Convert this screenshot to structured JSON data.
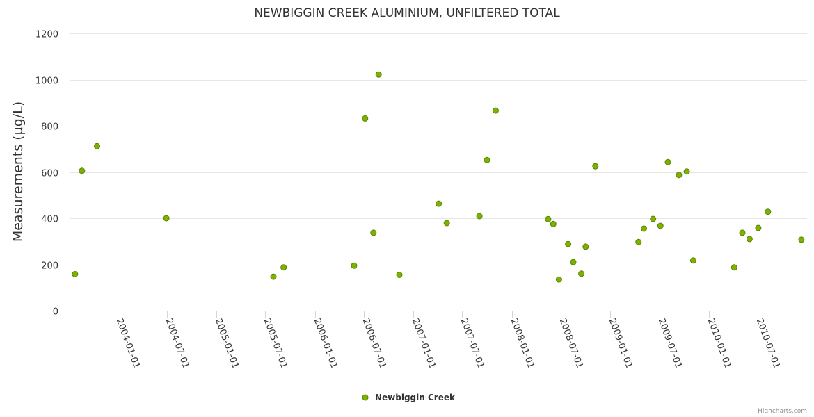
{
  "chart_data": {
    "type": "scatter",
    "title": "NEWBIGGIN CREEK ALUMINIUM, UNFILTERED TOTAL",
    "ylabel": "Measurements (µg/L)",
    "xlabel": "",
    "ylim": [
      0,
      1200
    ],
    "y_ticks": [
      "0",
      "200",
      "400",
      "600",
      "800",
      "1000",
      "1200"
    ],
    "x_ticks": [
      "2004-01-01",
      "2004-07-01",
      "2005-01-01",
      "2005-07-01",
      "2006-01-01",
      "2006-07-01",
      "2007-01-01",
      "2007-07-01",
      "2008-01-01",
      "2008-07-01",
      "2009-01-01",
      "2009-07-01",
      "2010-01-01",
      "2010-07-01"
    ],
    "xlim": [
      "2003-07-06",
      "2010-12-31"
    ],
    "grid": "horizontal",
    "legend_position": "bottom-center",
    "series": [
      {
        "name": "Newbiggin Creek",
        "color": "#7cb300",
        "points": [
          {
            "x": "2003-07-26",
            "y": 158
          },
          {
            "x": "2003-08-21",
            "y": 605
          },
          {
            "x": "2003-10-16",
            "y": 712
          },
          {
            "x": "2004-06-29",
            "y": 400
          },
          {
            "x": "2005-07-31",
            "y": 147
          },
          {
            "x": "2005-09-07",
            "y": 187
          },
          {
            "x": "2006-05-26",
            "y": 195
          },
          {
            "x": "2006-07-06",
            "y": 832
          },
          {
            "x": "2006-08-06",
            "y": 337
          },
          {
            "x": "2006-08-25",
            "y": 1022
          },
          {
            "x": "2006-11-10",
            "y": 155
          },
          {
            "x": "2007-04-05",
            "y": 463
          },
          {
            "x": "2007-05-05",
            "y": 379
          },
          {
            "x": "2007-09-03",
            "y": 409
          },
          {
            "x": "2007-10-01",
            "y": 652
          },
          {
            "x": "2007-11-02",
            "y": 866
          },
          {
            "x": "2008-05-15",
            "y": 396
          },
          {
            "x": "2008-06-03",
            "y": 375
          },
          {
            "x": "2008-06-24",
            "y": 135
          },
          {
            "x": "2008-07-28",
            "y": 288
          },
          {
            "x": "2008-08-16",
            "y": 210
          },
          {
            "x": "2008-09-15",
            "y": 160
          },
          {
            "x": "2008-10-01",
            "y": 277
          },
          {
            "x": "2008-11-06",
            "y": 625
          },
          {
            "x": "2009-04-15",
            "y": 297
          },
          {
            "x": "2009-05-05",
            "y": 355
          },
          {
            "x": "2009-06-08",
            "y": 397
          },
          {
            "x": "2009-07-05",
            "y": 367
          },
          {
            "x": "2009-08-02",
            "y": 643
          },
          {
            "x": "2009-09-12",
            "y": 587
          },
          {
            "x": "2009-10-11",
            "y": 602
          },
          {
            "x": "2009-11-04",
            "y": 217
          },
          {
            "x": "2010-04-05",
            "y": 187
          },
          {
            "x": "2010-05-05",
            "y": 337
          },
          {
            "x": "2010-06-01",
            "y": 310
          },
          {
            "x": "2010-07-03",
            "y": 358
          },
          {
            "x": "2010-08-08",
            "y": 428
          },
          {
            "x": "2010-12-10",
            "y": 307
          }
        ]
      }
    ]
  },
  "credits": "Highcharts.com"
}
